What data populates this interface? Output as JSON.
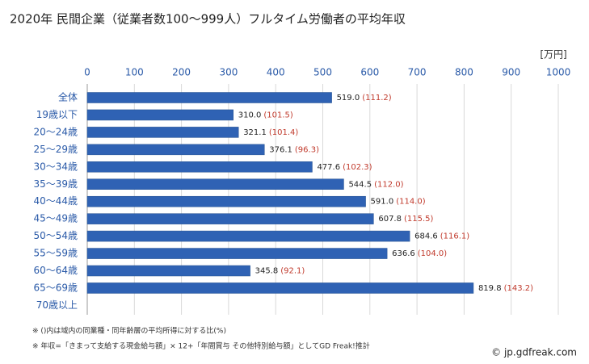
{
  "chart_data": {
    "type": "bar",
    "orientation": "horizontal",
    "title": "2020年 民間企業（従業者数100〜999人）フルタイム労働者の平均年収",
    "unit_label": "[万円]",
    "categories": [
      "全体",
      "19歳以下",
      "20〜24歳",
      "25〜29歳",
      "30〜34歳",
      "35〜39歳",
      "40〜44歳",
      "45〜49歳",
      "50〜54歳",
      "55〜59歳",
      "60〜64歳",
      "65〜69歳",
      "70歳以上"
    ],
    "values": [
      519.0,
      310.0,
      321.1,
      376.1,
      477.6,
      544.5,
      591.0,
      607.8,
      684.6,
      636.6,
      345.8,
      819.8,
      null
    ],
    "value_labels": [
      "519.0",
      "310.0",
      "321.1",
      "376.1",
      "477.6",
      "544.5",
      "591.0",
      "607.8",
      "684.6",
      "636.6",
      "345.8",
      "819.8",
      null
    ],
    "ratio_labels": [
      "(111.2)",
      "(101.5)",
      "(101.4)",
      "(96.3)",
      "(102.3)",
      "(112.0)",
      "(114.0)",
      "(115.5)",
      "(116.1)",
      "(104.0)",
      "(92.1)",
      "(143.2)",
      null
    ],
    "color": "#2f62b4",
    "xlim": [
      0,
      1000
    ],
    "xticks": [
      0,
      100,
      200,
      300,
      400,
      500,
      600,
      700,
      800,
      900,
      1000
    ],
    "grid": true,
    "notes": [
      "※ ()内は域内の同業種・同年齢層の平均所得に対する比(%)",
      "※ 年収=「きまって支給する現金給与額」× 12+「年間賞与 その他特別給与額」としてGD Freak!推計"
    ],
    "source": "© jp.gdfreak.com"
  }
}
